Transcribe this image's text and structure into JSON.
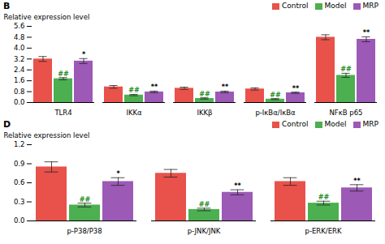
{
  "chart_data": [
    {
      "type": "bar",
      "title": "B",
      "ylabel": "Relative expression level",
      "categories": [
        "TLR4",
        "IKKα",
        "IKKβ",
        "p-IκBα/IκBα",
        "NFκB p65"
      ],
      "series": [
        {
          "name": "Control",
          "color": "#e8524a",
          "values": [
            3.2,
            1.15,
            1.05,
            1.0,
            4.8
          ],
          "errors": [
            0.18,
            0.1,
            0.08,
            0.08,
            0.18
          ]
        },
        {
          "name": "Model",
          "color": "#4caf50",
          "values": [
            1.75,
            0.55,
            0.3,
            0.25,
            2.0
          ],
          "errors": [
            0.08,
            0.05,
            0.05,
            0.04,
            0.15
          ]
        },
        {
          "name": "MRP",
          "color": "#9c59b6",
          "values": [
            3.05,
            0.78,
            0.78,
            0.72,
            4.65
          ],
          "errors": [
            0.18,
            0.06,
            0.06,
            0.05,
            0.18
          ]
        }
      ],
      "annotations": [
        {
          "text": "##",
          "series": "Model",
          "category": "TLR4",
          "color": "#228B22"
        },
        {
          "text": "##",
          "series": "Model",
          "category": "IKKα",
          "color": "#228B22"
        },
        {
          "text": "##",
          "series": "Model",
          "category": "IKKβ",
          "color": "#228B22"
        },
        {
          "text": "##",
          "series": "Model",
          "category": "p-IκBα/IκBα",
          "color": "#228B22"
        },
        {
          "text": "##",
          "series": "Model",
          "category": "NFκB p65",
          "color": "#228B22"
        },
        {
          "text": "*",
          "series": "MRP",
          "category": "TLR4",
          "color": "#000000"
        },
        {
          "text": "**",
          "series": "MRP",
          "category": "IKKα",
          "color": "#000000"
        },
        {
          "text": "**",
          "series": "MRP",
          "category": "IKKβ",
          "color": "#000000"
        },
        {
          "text": "**",
          "series": "MRP",
          "category": "p-IκBα/IκBα",
          "color": "#000000"
        },
        {
          "text": "**",
          "series": "MRP",
          "category": "NFκB p65",
          "color": "#000000"
        }
      ],
      "ylim": [
        0,
        5.6
      ],
      "yticks": [
        {
          "value": 0,
          "label": "0.0"
        },
        0.8,
        1.6,
        2.4,
        3.2,
        {
          "value": 4,
          "label": "4.0"
        },
        4.8,
        5.6
      ],
      "grid": false,
      "legend": "upper right"
    },
    {
      "type": "bar",
      "title": "D",
      "ylabel": "Relative expression level",
      "categories": [
        "p-P38/P38",
        "p-JNK/JNK",
        "p-ERK/ERK"
      ],
      "series": [
        {
          "name": "Control",
          "color": "#e8524a",
          "values": [
            0.85,
            0.75,
            0.62
          ],
          "errors": [
            0.08,
            0.06,
            0.06
          ]
        },
        {
          "name": "Model",
          "color": "#4caf50",
          "values": [
            0.25,
            0.18,
            0.28
          ],
          "errors": [
            0.03,
            0.02,
            0.03
          ]
        },
        {
          "name": "MRP",
          "color": "#9c59b6",
          "values": [
            0.62,
            0.45,
            0.52
          ],
          "errors": [
            0.06,
            0.04,
            0.05
          ]
        }
      ],
      "annotations": [
        {
          "text": "##",
          "series": "Model",
          "category": "p-P38/P38",
          "color": "#228B22"
        },
        {
          "text": "##",
          "series": "Model",
          "category": "p-JNK/JNK",
          "color": "#228B22"
        },
        {
          "text": "##",
          "series": "Model",
          "category": "p-ERK/ERK",
          "color": "#228B22"
        },
        {
          "text": "*",
          "series": "MRP",
          "category": "p-P38/P38",
          "color": "#000000"
        },
        {
          "text": "**",
          "series": "MRP",
          "category": "p-JNK/JNK",
          "color": "#000000"
        },
        {
          "text": "**",
          "series": "MRP",
          "category": "p-ERK/ERK",
          "color": "#000000"
        }
      ],
      "ylim": [
        0,
        1.2
      ],
      "yticks": [
        {
          "value": 0,
          "label": "0.0"
        },
        0.3,
        0.6,
        0.9,
        1.2
      ],
      "grid": false,
      "legend": "upper right"
    }
  ]
}
